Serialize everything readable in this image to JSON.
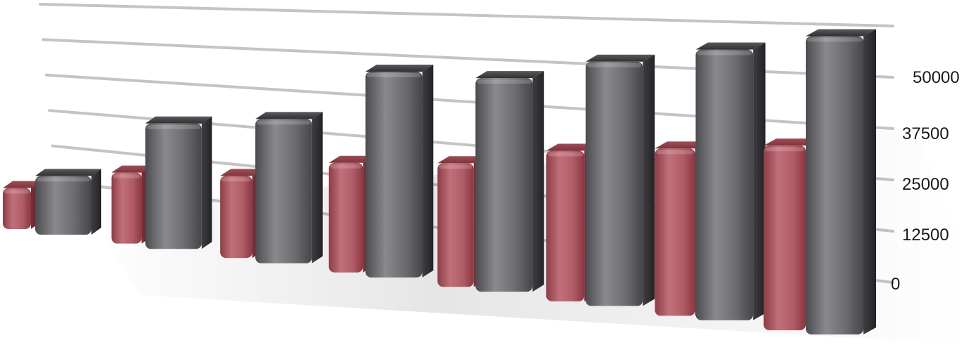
{
  "chart_data": {
    "type": "bar",
    "categories": [
      "",
      "",
      "",
      "",
      "",
      "",
      "",
      ""
    ],
    "series": [
      {
        "values": [
          9000,
          15000,
          16000,
          20000,
          21000,
          24000,
          25000,
          26000
        ]
      },
      {
        "values": [
          13500,
          27500,
          29000,
          38500,
          37000,
          39500,
          41000,
          42500
        ]
      }
    ],
    "yticks": [
      "0",
      "12500",
      "25000",
      "37500",
      "50000"
    ],
    "ylim": [
      0,
      62500
    ],
    "grid": true,
    "legend": "none",
    "colors": {
      "series1": "#b05a63",
      "series2": "#5e5e62",
      "grid": "#c4c4c4"
    }
  }
}
